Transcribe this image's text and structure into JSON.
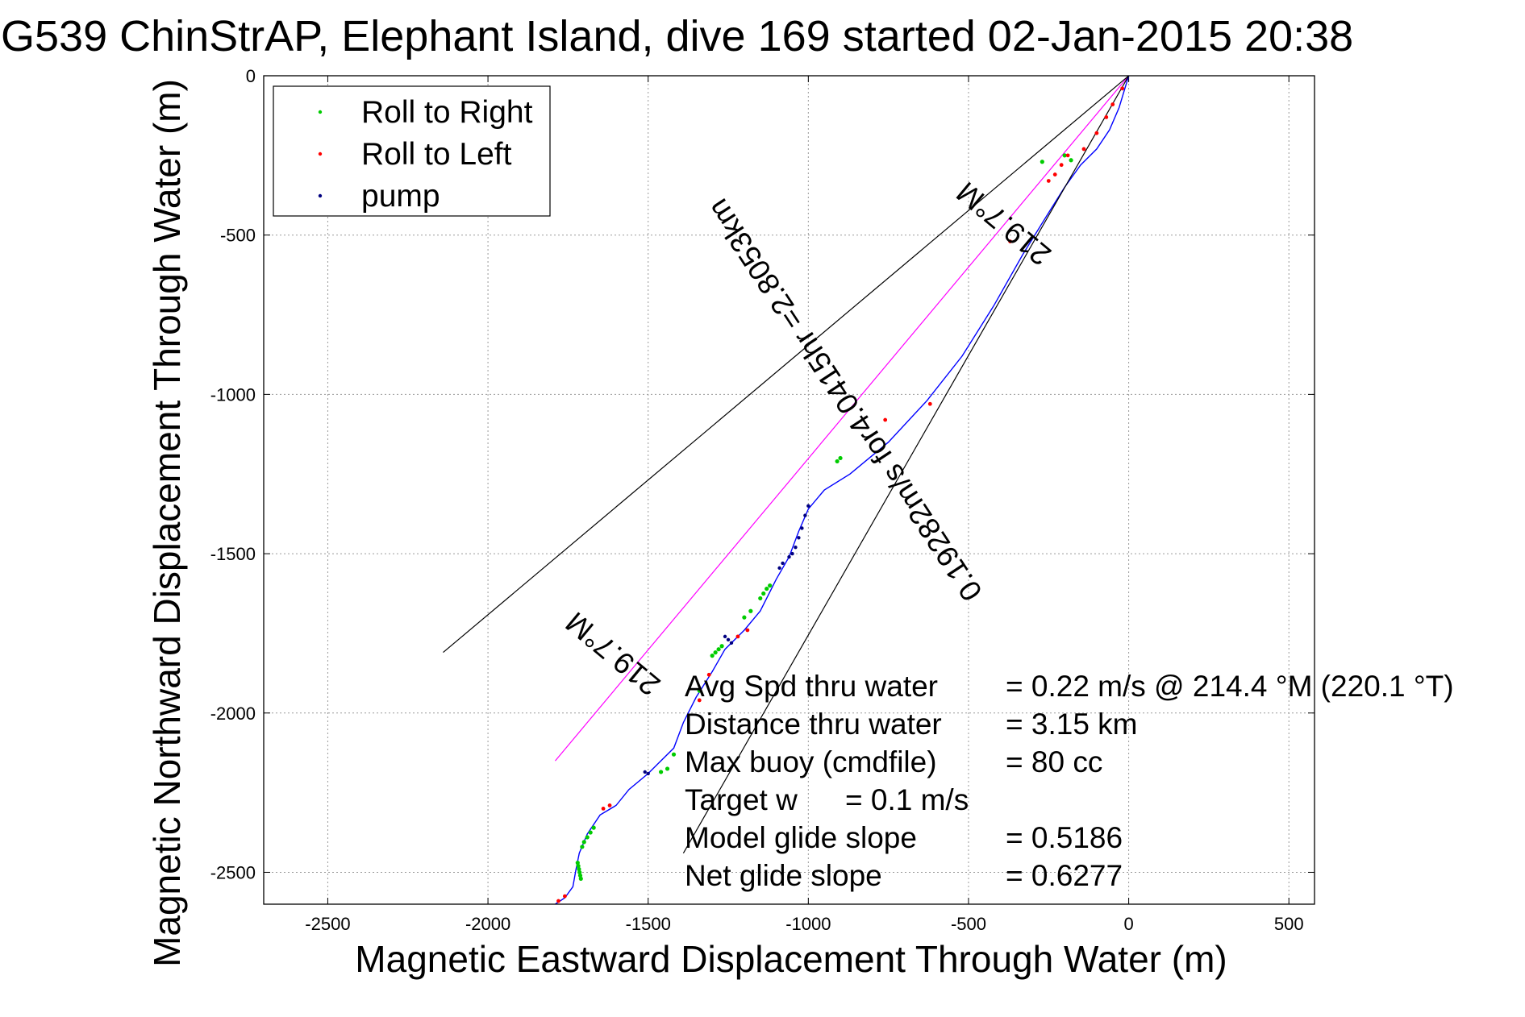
{
  "chart_data": {
    "type": "line",
    "title": "G539 ChinStrAP, Elephant Island, dive 169 started 02-Jan-2015 20:38",
    "xlabel": "Magnetic Eastward Displacement Through Water (m)",
    "ylabel": "Magnetic Northward Displacement Through Water (m)",
    "xlim": [
      -2700,
      580
    ],
    "ylim": [
      -2600,
      0
    ],
    "xticks": [
      -2500,
      -2000,
      -1500,
      -1000,
      -500,
      0,
      500
    ],
    "yticks": [
      0,
      -500,
      -1000,
      -1500,
      -2000,
      -2500
    ],
    "grid": true,
    "legend_position": "top-left",
    "legend": [
      {
        "label": "Roll to Right",
        "color": "#00cc00"
      },
      {
        "label": "Roll to Left",
        "color": "#ff0000"
      },
      {
        "label": "pump",
        "color": "#000080"
      }
    ],
    "series": [
      {
        "kind": "track",
        "color": "#0000ff",
        "x": [
          0,
          -30,
          -60,
          -100,
          -150,
          -200,
          -250,
          -330,
          -420,
          -520,
          -630,
          -750,
          -870,
          -950,
          -1000,
          -1030,
          -1060,
          -1100,
          -1150,
          -1200,
          -1260,
          -1300,
          -1350,
          -1390,
          -1420,
          -1470,
          -1500,
          -1560,
          -1600,
          -1650,
          -1690,
          -1715,
          -1725,
          -1735,
          -1760,
          -1790
        ],
        "y": [
          0,
          -100,
          -170,
          -230,
          -280,
          -350,
          -430,
          -560,
          -720,
          -880,
          -1020,
          -1150,
          -1250,
          -1300,
          -1360,
          -1430,
          -1510,
          -1580,
          -1680,
          -1740,
          -1800,
          -1870,
          -1950,
          -2030,
          -2110,
          -2160,
          -2190,
          -2240,
          -2290,
          -2320,
          -2380,
          -2440,
          -2490,
          -2545,
          -2580,
          -2600
        ]
      },
      {
        "kind": "heading-line",
        "color": "#ff00ff",
        "label": "219.7°M",
        "x": [
          0,
          -1790
        ],
        "y": [
          0,
          -2150
        ]
      },
      {
        "kind": "envelope",
        "color": "#000000",
        "x": [
          0,
          -2140
        ],
        "y": [
          0,
          -1810
        ]
      },
      {
        "kind": "envelope",
        "color": "#000000",
        "x": [
          0,
          -1390
        ],
        "y": [
          0,
          -2440
        ]
      }
    ],
    "roll_right_points": {
      "x": [
        -200,
        -180,
        -270,
        -1720,
        -1718,
        -1716,
        -1714,
        -1712,
        -1710,
        -1706,
        -1700,
        -1690,
        -1680,
        -1670,
        -1460,
        -1440,
        -1420,
        -1300,
        -1290,
        -1280,
        -1270,
        -1340,
        -1150,
        -1140,
        -1130,
        -1120,
        -1180,
        -1200,
        -910,
        -900
      ],
      "y": [
        -250,
        -265,
        -270,
        -2470,
        -2480,
        -2490,
        -2500,
        -2510,
        -2520,
        -2420,
        -2405,
        -2390,
        -2375,
        -2360,
        -2185,
        -2175,
        -2130,
        -1820,
        -1810,
        -1800,
        -1790,
        -1930,
        -1640,
        -1625,
        -1610,
        -1600,
        -1680,
        -1700,
        -1210,
        -1200
      ]
    },
    "roll_left_points": {
      "x": [
        -20,
        -50,
        -70,
        -100,
        -140,
        -1780,
        -1760,
        -1640,
        -1620,
        -1340,
        -1310,
        -1220,
        -1190,
        -760,
        -620,
        -370,
        -250,
        -230,
        -210,
        -190
      ],
      "y": [
        -40,
        -90,
        -130,
        -180,
        -230,
        -2590,
        -2575,
        -2300,
        -2290,
        -1960,
        -1880,
        -1760,
        -1740,
        -1080,
        -1030,
        -520,
        -330,
        -310,
        -280,
        -250
      ]
    },
    "pump_points": {
      "x": [
        -1000,
        -1010,
        -1020,
        -1030,
        -1040,
        -1050,
        -1060,
        -1080,
        -1090,
        -1240,
        -1250,
        -1260,
        -1500,
        -1510
      ],
      "y": [
        -1350,
        -1380,
        -1420,
        -1450,
        -1480,
        -1500,
        -1510,
        -1530,
        -1545,
        -1780,
        -1770,
        -1760,
        -2190,
        -2185
      ]
    },
    "annotations": [
      {
        "text": "219.7°M",
        "x": -1590,
        "y": -1790,
        "angle_deg": 219.7
      },
      {
        "text": "219.7°M",
        "x": -370,
        "y": -440,
        "angle_deg": 219.7
      },
      {
        "text": "0.19282m/s for4.0415hr =2.8053km",
        "x": -860,
        "y": -1000,
        "angle_deg": 236.7
      }
    ],
    "summary": [
      {
        "label": "Avg Spd thru water",
        "value": "=  0.22 m/s @ 214.4 °M (220.1 °T)"
      },
      {
        "label": "Distance thru water",
        "value": "=  3.15 km"
      },
      {
        "label": "Max buoy (cmdfile)",
        "value": "= 80 cc"
      },
      {
        "label": "Target w",
        "value": "= 0.1 m/s"
      },
      {
        "label": "Model glide slope",
        "value": "= 0.5186"
      },
      {
        "label": "Net glide slope",
        "value": "= 0.6277"
      }
    ]
  }
}
